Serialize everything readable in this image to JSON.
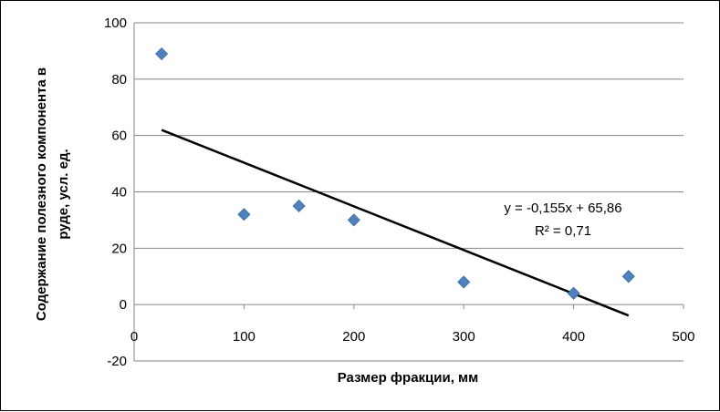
{
  "chart_data": {
    "type": "scatter",
    "title": "",
    "xlabel": "Размер фракции, мм",
    "ylabel_lines": [
      "Содержание полезного компонента в",
      "руде, усл. ед."
    ],
    "xlim": [
      0,
      500
    ],
    "ylim": [
      -20,
      100
    ],
    "x_ticks": [
      0,
      100,
      200,
      300,
      400,
      500
    ],
    "y_ticks": [
      -20,
      0,
      20,
      40,
      60,
      80,
      100
    ],
    "grid": "horizontal",
    "legend": "none",
    "series": [
      {
        "color": "#4f81bd",
        "marker": "diamond",
        "points": [
          {
            "x": 25,
            "y": 89
          },
          {
            "x": 100,
            "y": 32
          },
          {
            "x": 150,
            "y": 35
          },
          {
            "x": 200,
            "y": 30
          },
          {
            "x": 300,
            "y": 8
          },
          {
            "x": 400,
            "y": 4
          },
          {
            "x": 450,
            "y": 10
          }
        ]
      }
    ],
    "trendline": {
      "type": "linear",
      "slope": -0.155,
      "intercept": 65.86,
      "x_from": 25,
      "x_to": 450,
      "color": "#000000",
      "equation": "y = -0,155x + 65,86",
      "r2_label": "R² = 0,71"
    }
  }
}
